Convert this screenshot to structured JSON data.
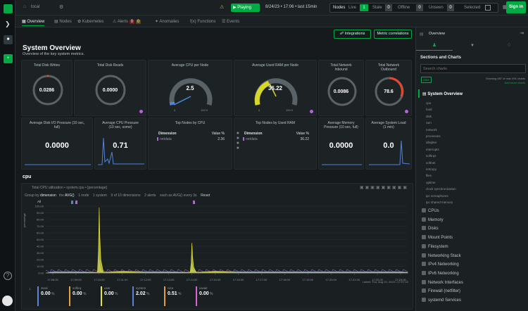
{
  "topbar": {
    "space": "local",
    "playing": "Playing",
    "timerange": "8/24/23 • 17:06 • last 15min",
    "nodes_label": "Nodes",
    "live_label": "Live",
    "live_count": "1",
    "stale_label": "Stale",
    "stale_count": "0",
    "offline_label": "Offline",
    "offline_count": "0",
    "unseen_label": "Unseen",
    "unseen_count": "0",
    "selected_label": "Selected",
    "signin": "Sign in"
  },
  "tabs": [
    {
      "label": "Overview"
    },
    {
      "label": "Nodes"
    },
    {
      "label": "Kubernetes"
    },
    {
      "label": "Alerts"
    },
    {
      "label": "Anomalies"
    },
    {
      "label": "Functions"
    },
    {
      "label": "Events"
    }
  ],
  "alerts_badges": [
    "0",
    "0"
  ],
  "header": {
    "integrations": "Integrations",
    "metric_correlations": "Metric correlations",
    "title": "System Overview",
    "subtitle": "Overview of the key system metrics."
  },
  "gauges": [
    {
      "title": "Total Disk Writes",
      "value": "0.0286"
    },
    {
      "title": "Total Disk Reads",
      "value": "0.0000"
    },
    {
      "title": "Average CPU per Node",
      "value": "2.5",
      "min": "0",
      "max": "100.0",
      "level": 0.025
    },
    {
      "title": "Average Used RAM per Node",
      "value": "36.22",
      "min": "0",
      "max": "100.0",
      "level": 0.36
    },
    {
      "title": "Total Network Inbound",
      "value": "0.0086"
    },
    {
      "title": "Total Network Outbound",
      "value": "78.6",
      "level": 0.3
    }
  ],
  "row2": [
    {
      "title": "Average Disk I/O Pressure (10 sec, full)",
      "value": "0.0000"
    },
    {
      "title": "Average CPU Pressure (10 sec, some)",
      "value": "0.71"
    },
    {
      "title": "Top Nodes by CPU",
      "col1": "Dimension",
      "col2": "Value %",
      "row_name": "netdata",
      "row_value": "2.36"
    },
    {
      "title": "Top Nodes by Used RAM",
      "col1": "Dimension",
      "col2": "Value %",
      "row_name": "netdata",
      "row_value": "36.22"
    },
    {
      "title": "Average Memory Pressure (10 sec, full)",
      "value": "0.0000"
    },
    {
      "title": "Average System Load (1 min)",
      "value": "0.0"
    }
  ],
  "cpu": {
    "section": "cpu",
    "chart_title": "Total CPU utilization • system.cpu • [percentage]",
    "groupby": "Group by",
    "groupby_val": "dimension",
    "the": "the",
    "agg": "AVG()",
    "nodes": "1 node",
    "instances": "1 system",
    "dims": "9 of 10 dimensions",
    "alerts": "2 alerts",
    "each": "each as AVG() every 3s",
    "reset": "Reset",
    "ylabel": "percentage",
    "footer": "Latest: Thu, Aug 24, 2023 • 17:07:22",
    "all": "All",
    "legend": [
      {
        "name": "steal",
        "value": "0.00",
        "unit": "%",
        "color": "#5f84d6"
      },
      {
        "name": "softirq",
        "value": "0.00",
        "unit": "%",
        "color": "#e8a23d"
      },
      {
        "name": "user",
        "value": "0.00",
        "unit": "%",
        "color": "#e4e33b"
      },
      {
        "name": "system",
        "value": "2.02",
        "unit": "%",
        "color": "#5d7fd5"
      },
      {
        "name": "nice",
        "value": "0.51",
        "unit": "%",
        "color": "#e89a3c"
      },
      {
        "name": "iowait",
        "value": "0.00",
        "unit": "%",
        "color": "#d864d8"
      }
    ]
  },
  "chart_data": {
    "type": "line",
    "x": [
      "17:08:00",
      "17:09:00",
      "17:10:00",
      "17:11:00",
      "17:12:00",
      "17:13:00",
      "17:14:00",
      "17:15:00",
      "17:16:00",
      "17:17:00",
      "17:18:00",
      "17:19:00",
      "17:20:00",
      "17:21:00",
      "17:22:00",
      "17:23:00"
    ],
    "ylim": [
      0,
      100
    ],
    "yticks": [
      0,
      10,
      20,
      30,
      40,
      50,
      60,
      70,
      80,
      90,
      100
    ],
    "ylabel": "percentage",
    "series": [
      {
        "name": "user",
        "color": "#e4e33b",
        "values": [
          1,
          1,
          98,
          2,
          1,
          1,
          45,
          2,
          1,
          1,
          1,
          1,
          1,
          1,
          1,
          1
        ]
      },
      {
        "name": "system",
        "color": "#5d7fd5",
        "values": [
          2,
          2,
          20,
          3,
          2,
          2,
          12,
          3,
          2,
          2,
          2,
          2,
          2,
          2,
          2,
          2
        ]
      }
    ]
  },
  "right": {
    "panel_title": "Overview",
    "sections_title": "Sections and Charts",
    "search_placeholder": "Search charts",
    "showing": "Showing 487 of max 491 charts",
    "add_more": "Add more charts",
    "plus": "plus",
    "active_section": "System Overview",
    "toc": [
      "cpu",
      "load",
      "disk",
      "ram",
      "network",
      "processes",
      "idlejitter",
      "interrupts",
      "softirqs",
      "softnet",
      "entropy",
      "files",
      "uptime",
      "clock synchronization",
      "ipc semaphores",
      "ipc shared memory"
    ],
    "sections": [
      "CPUs",
      "Memory",
      "Disks",
      "Mount Points",
      "Filesystem",
      "Networking Stack",
      "IPv4 Networking",
      "IPv6 Networking",
      "Network Interfaces",
      "Firewall (netfilter)",
      "systemd Services"
    ]
  }
}
